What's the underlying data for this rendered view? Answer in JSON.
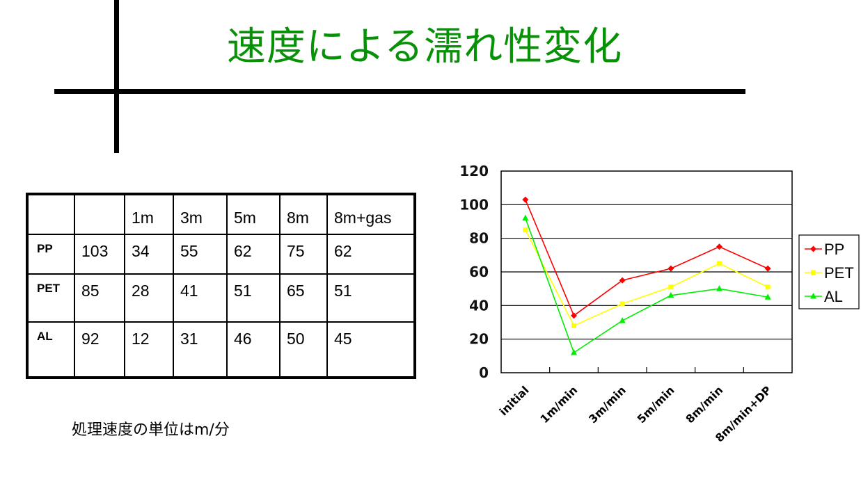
{
  "slide": {
    "title": "速度による濡れ性変化",
    "note": "処理速度の単位はm/分",
    "title_color": "#079107"
  },
  "table": {
    "headers": [
      "",
      "",
      "1m",
      "3m",
      "5m",
      "8m",
      "8m+gas"
    ],
    "rows": [
      {
        "label": "PP",
        "values": [
          "103",
          "34",
          "55",
          "62",
          "75",
          "62"
        ]
      },
      {
        "label": "PET",
        "values": [
          "85",
          "28",
          "41",
          "51",
          "65",
          "51"
        ]
      },
      {
        "label": "AL",
        "values": [
          "92",
          "12",
          "31",
          "46",
          "50",
          "45"
        ]
      }
    ]
  },
  "chart_data": {
    "type": "line",
    "title": "",
    "xlabel": "",
    "ylabel": "",
    "categories": [
      "initial",
      "1m/min",
      "3m/min",
      "5m/min",
      "8m/min",
      "8m/min+DP"
    ],
    "series": [
      {
        "name": "PP",
        "color": "#ff0000",
        "marker": "diamond",
        "values": [
          103,
          34,
          55,
          62,
          75,
          62
        ]
      },
      {
        "name": "PET",
        "color": "#ffff00",
        "marker": "square",
        "values": [
          85,
          28,
          41,
          51,
          65,
          51
        ]
      },
      {
        "name": "AL",
        "color": "#00ee00",
        "marker": "triangle",
        "values": [
          92,
          12,
          31,
          46,
          50,
          45
        ]
      }
    ],
    "ylim": [
      0,
      120
    ],
    "yticks": [
      "0",
      "20",
      "40",
      "60",
      "80",
      "100",
      "120"
    ],
    "grid": true,
    "legend_position": "right"
  }
}
